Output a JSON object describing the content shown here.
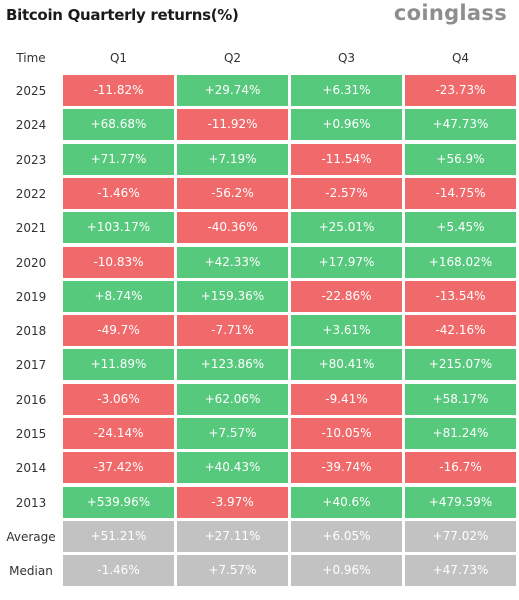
{
  "title": "Bitcoin Quarterly returns(%)",
  "brand": "coinglass",
  "colors": {
    "positive": "#56c97d",
    "negative": "#f06a6b",
    "summary": "#c2c2c2"
  },
  "chart_data": {
    "type": "table",
    "title": "Bitcoin Quarterly returns(%)",
    "columns": [
      "Time",
      "Q1",
      "Q2",
      "Q3",
      "Q4"
    ],
    "rows": [
      {
        "label": "2025",
        "values": [
          "-11.82%",
          "+29.74%",
          "+6.31%",
          "-23.73%"
        ]
      },
      {
        "label": "2024",
        "values": [
          "+68.68%",
          "-11.92%",
          "+0.96%",
          "+47.73%"
        ]
      },
      {
        "label": "2023",
        "values": [
          "+71.77%",
          "+7.19%",
          "-11.54%",
          "+56.9%"
        ]
      },
      {
        "label": "2022",
        "values": [
          "-1.46%",
          "-56.2%",
          "-2.57%",
          "-14.75%"
        ]
      },
      {
        "label": "2021",
        "values": [
          "+103.17%",
          "-40.36%",
          "+25.01%",
          "+5.45%"
        ]
      },
      {
        "label": "2020",
        "values": [
          "-10.83%",
          "+42.33%",
          "+17.97%",
          "+168.02%"
        ]
      },
      {
        "label": "2019",
        "values": [
          "+8.74%",
          "+159.36%",
          "-22.86%",
          "-13.54%"
        ]
      },
      {
        "label": "2018",
        "values": [
          "-49.7%",
          "-7.71%",
          "+3.61%",
          "-42.16%"
        ]
      },
      {
        "label": "2017",
        "values": [
          "+11.89%",
          "+123.86%",
          "+80.41%",
          "+215.07%"
        ]
      },
      {
        "label": "2016",
        "values": [
          "-3.06%",
          "+62.06%",
          "-9.41%",
          "+58.17%"
        ]
      },
      {
        "label": "2015",
        "values": [
          "-24.14%",
          "+7.57%",
          "-10.05%",
          "+81.24%"
        ]
      },
      {
        "label": "2014",
        "values": [
          "-37.42%",
          "+40.43%",
          "-39.74%",
          "-16.7%"
        ]
      },
      {
        "label": "2013",
        "values": [
          "+539.96%",
          "-3.97%",
          "+40.6%",
          "+479.59%"
        ]
      }
    ],
    "summary_rows": [
      {
        "label": "Average",
        "values": [
          "+51.21%",
          "+27.11%",
          "+6.05%",
          "+77.02%"
        ]
      },
      {
        "label": "Median",
        "values": [
          "-1.46%",
          "+7.57%",
          "+0.96%",
          "+47.73%"
        ]
      }
    ]
  }
}
